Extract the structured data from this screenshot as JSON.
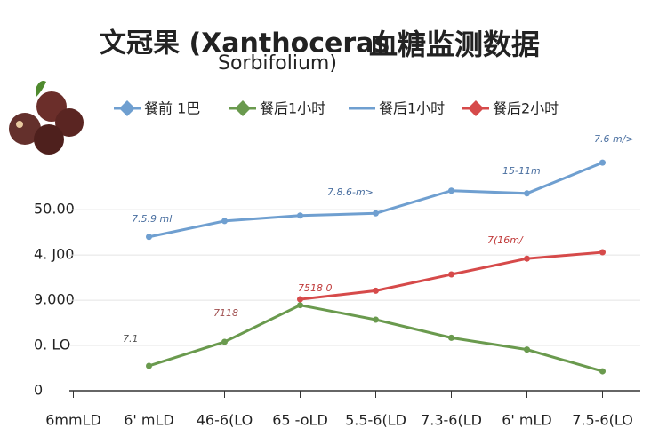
{
  "chart_data": {
    "type": "line",
    "title": [
      "文冠果 (Xanthoceras",
      "Sorbifolium)",
      "血糖监测数据"
    ],
    "legend": [
      {
        "label": "餐前 1巴",
        "color": "#6f9fd0",
        "marker": "diamond"
      },
      {
        "label": "餐后1小时",
        "color": "#6a9a4e",
        "marker": "diamond"
      },
      {
        "label": "餐后1小时",
        "color": "#6f9fd0",
        "marker": "line"
      },
      {
        "label": "餐后2小时",
        "color": "#d64a4a",
        "marker": "diamond"
      }
    ],
    "categories": [
      "6mmLD",
      "6' mLD",
      "46-6(LO",
      "65 -oLD",
      "5.5-6(LD",
      "7.3-6(LD",
      "6' mLD",
      "7.5-6(LO"
    ],
    "series": [
      {
        "color": "#6f9fd0",
        "values": [
          null,
          3.4,
          3.75,
          3.87,
          3.92,
          4.42,
          4.36,
          5.04
        ]
      },
      {
        "color": "#6a9a4e",
        "values": [
          null,
          0.55,
          1.08,
          1.89,
          1.57,
          1.17,
          0.91,
          0.43
        ]
      },
      {
        "color": "#d64a4a",
        "values": [
          null,
          null,
          null,
          2.02,
          2.21,
          2.57,
          2.92,
          3.06
        ]
      }
    ],
    "annotations": [
      "7.5.9 ml",
      "7.8.6-m>",
      "15-11m",
      "7.6 m/>",
      "7(16m/",
      "7518 0",
      "7118",
      "7.1"
    ],
    "ylim": [
      0,
      5.2
    ],
    "yticks": [
      0,
      {
        "value": 1,
        "label": "0. LO"
      },
      {
        "value": 2,
        "label": "9.000"
      },
      {
        "value": 3,
        "label": "4. J00"
      },
      {
        "value": 4,
        "label": "50.00"
      }
    ],
    "grid": true
  }
}
